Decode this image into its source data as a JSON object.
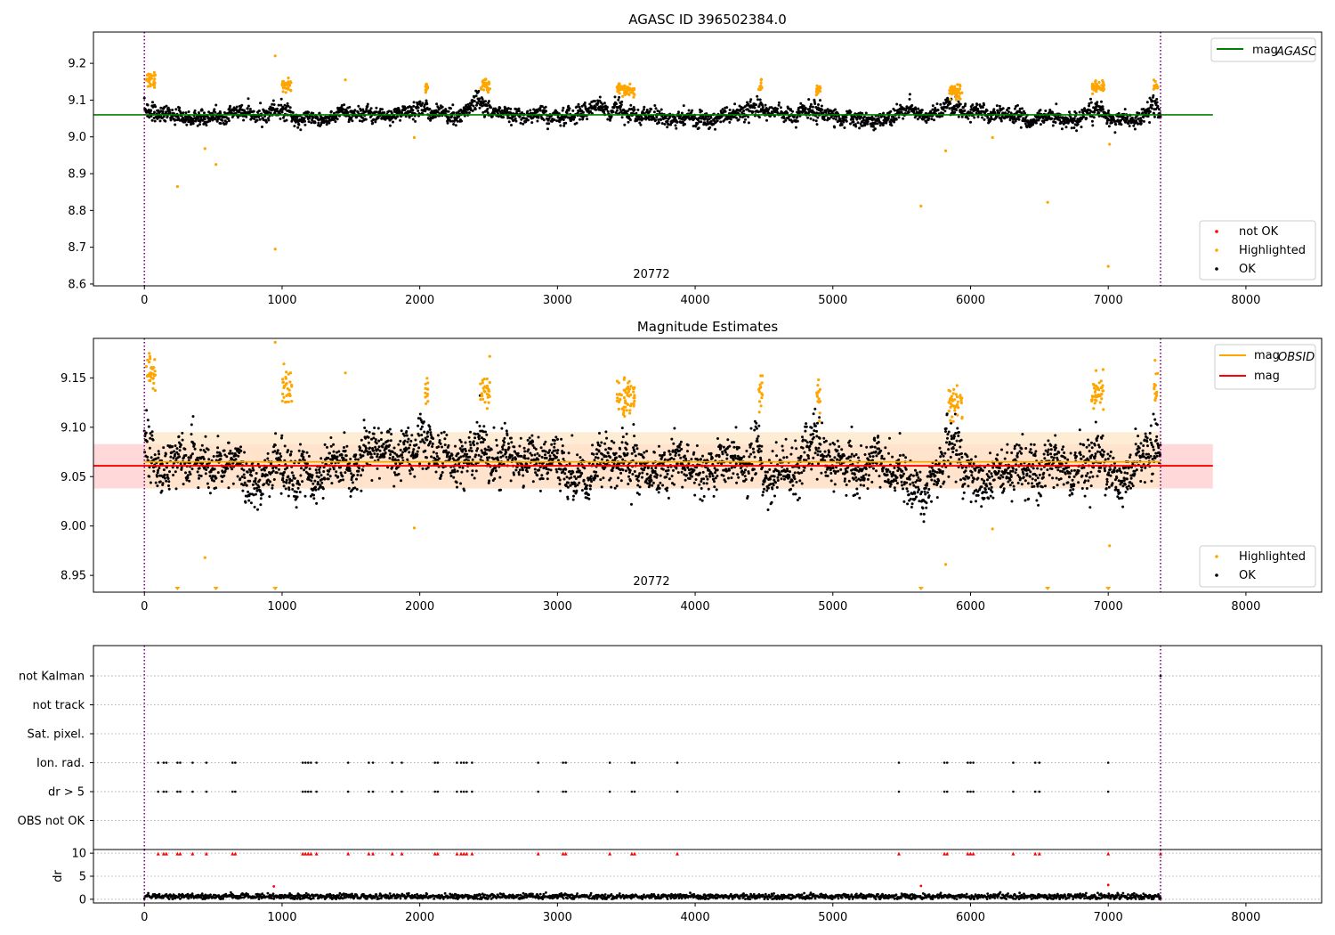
{
  "chart_data": [
    {
      "type": "scatter",
      "title": "AGASC ID 396502384.0",
      "annotation": "20772",
      "xlim": [
        -370,
        8550
      ],
      "ylim": [
        8.595,
        9.285
      ],
      "xticks": [
        0,
        1000,
        2000,
        3000,
        4000,
        5000,
        6000,
        7000,
        8000
      ],
      "yticks": [
        8.6,
        8.7,
        8.8,
        8.9,
        9.0,
        9.1,
        9.2
      ],
      "ytick_labels": [
        "8.6",
        "8.7",
        "8.8",
        "8.9",
        "9.0",
        "9.1",
        "9.2"
      ],
      "vlines": [
        0,
        7380
      ],
      "lines": [
        {
          "name": "mag_AGASC",
          "label_main": "mag",
          "label_sub": "AGASC",
          "y": 9.06,
          "x_range": [
            -370,
            7760
          ],
          "color": "#008000"
        }
      ],
      "legend_top": [
        {
          "label_main": "mag",
          "label_sub": "AGASC",
          "kind": "line",
          "color": "#008000"
        }
      ],
      "legend_bottom": [
        {
          "label": "not OK",
          "kind": "dot",
          "color": "#ff0000"
        },
        {
          "label": "Highlighted",
          "kind": "dot",
          "color": "#ffa500"
        },
        {
          "label": "OK",
          "kind": "dot",
          "color": "#000000"
        }
      ],
      "series": [
        {
          "name": "OK",
          "color": "#000000",
          "generated": "baseline",
          "center": 9.058,
          "spread": 0.018,
          "seed": 11
        },
        {
          "name": "Highlighted",
          "color": "#ffa500",
          "clusters": [
            [
              10,
              80,
              9.155
            ],
            [
              1000,
              1070,
              9.14
            ],
            [
              2040,
              2060,
              9.135
            ],
            [
              2440,
              2510,
              9.138
            ],
            [
              3430,
              3560,
              9.13
            ],
            [
              4460,
              4490,
              9.135
            ],
            [
              4880,
              4910,
              9.13
            ],
            [
              5840,
              5940,
              9.125
            ],
            [
              6880,
              6970,
              9.135
            ],
            [
              7330,
              7360,
              9.14
            ]
          ],
          "outliers": [
            [
              240,
              8.865
            ],
            [
              440,
              8.968
            ],
            [
              520,
              8.925
            ],
            [
              950,
              8.695
            ],
            [
              950,
              9.22
            ],
            [
              1460,
              9.155
            ],
            [
              1960,
              8.998
            ],
            [
              5640,
              8.812
            ],
            [
              5820,
              8.962
            ],
            [
              6160,
              8.998
            ],
            [
              6560,
              8.822
            ],
            [
              7000,
              8.648
            ],
            [
              7010,
              8.98
            ]
          ]
        }
      ]
    },
    {
      "type": "scatter",
      "title": "Magnitude Estimates",
      "annotation": "20772",
      "xlim": [
        -370,
        8550
      ],
      "ylim": [
        8.933,
        9.19
      ],
      "xticks": [
        0,
        1000,
        2000,
        3000,
        4000,
        5000,
        6000,
        7000,
        8000
      ],
      "yticks": [
        8.95,
        9.0,
        9.05,
        9.1,
        9.15
      ],
      "ytick_labels": [
        "8.95",
        "9.00",
        "9.05",
        "9.10",
        "9.15"
      ],
      "vlines": [
        0,
        7380
      ],
      "bands": [
        {
          "y": [
            9.038,
            9.083
          ],
          "x_range": [
            -370,
            7760
          ],
          "color": "#ffcccc"
        },
        {
          "y": [
            9.038,
            9.095
          ],
          "x_range": [
            0,
            7380
          ],
          "color": "#ffe6c7"
        }
      ],
      "lines": [
        {
          "name": "mag_OBSID",
          "y": 9.065,
          "x_range": [
            0,
            7380
          ],
          "color": "#ffa500"
        },
        {
          "name": "mag",
          "y": 9.061,
          "x_range": [
            -370,
            7760
          ],
          "color": "#ff0000"
        }
      ],
      "legend_top": [
        {
          "label_main": "mag",
          "label_sub": "OBSID",
          "kind": "line",
          "color": "#ffa500"
        },
        {
          "label_main": "mag",
          "label_sub": "",
          "kind": "line",
          "color": "#ff0000"
        }
      ],
      "legend_bottom": [
        {
          "label": "Highlighted",
          "kind": "dot",
          "color": "#ffa500"
        },
        {
          "label": "OK",
          "kind": "dot",
          "color": "#000000"
        }
      ],
      "series": [
        {
          "name": "OK",
          "color": "#000000",
          "generated": "baseline",
          "center": 9.058,
          "spread": 0.02,
          "seed": 29
        },
        {
          "name": "Highlighted",
          "color": "#ffa500",
          "clusters": [
            [
              10,
              80,
              9.155
            ],
            [
              1000,
              1070,
              9.14
            ],
            [
              2040,
              2060,
              9.135
            ],
            [
              2440,
              2510,
              9.138
            ],
            [
              3430,
              3560,
              9.13
            ],
            [
              4460,
              4490,
              9.135
            ],
            [
              4880,
              4910,
              9.13
            ],
            [
              5840,
              5940,
              9.125
            ],
            [
              6880,
              6970,
              9.135
            ],
            [
              7330,
              7360,
              9.14
            ]
          ],
          "outliers": [
            [
              440,
              8.968
            ],
            [
              1460,
              9.155
            ],
            [
              950,
              9.186
            ],
            [
              1960,
              8.998
            ],
            [
              5820,
              8.961
            ],
            [
              6160,
              8.997
            ],
            [
              7010,
              8.98
            ]
          ],
          "clipped_x": [
            240,
            520,
            950,
            5640,
            6560,
            7000
          ]
        }
      ]
    },
    {
      "type": "scatter",
      "title": "",
      "xlim": [
        -370,
        8550
      ],
      "categories": [
        "not Kalman",
        "not track",
        "Sat. pixel.",
        "Ion. rad.",
        "dr > 5",
        "OBS not OK"
      ],
      "vlines": [
        0,
        7380
      ],
      "flag_x": [
        100,
        140,
        160,
        240,
        260,
        350,
        450,
        640,
        660,
        1150,
        1170,
        1190,
        1210,
        1250,
        1480,
        1630,
        1660,
        1800,
        1870,
        2110,
        2130,
        2270,
        2300,
        2320,
        2340,
        2380,
        2860,
        3040,
        3060,
        3380,
        3540,
        3560,
        3870,
        5480,
        5810,
        5830,
        5980,
        6000,
        6020,
        6310,
        6470,
        6500,
        7000
      ],
      "flag_rows": [
        "Ion. rad.",
        "dr > 5"
      ],
      "not_kalman_x": [
        7380
      ]
    },
    {
      "type": "line",
      "title": "",
      "ylabel": "dr",
      "xlim": [
        -370,
        8550
      ],
      "ylim": [
        -0.8,
        10.8
      ],
      "yticks": [
        0,
        5,
        10
      ],
      "ytick_labels": [
        "0",
        "5",
        "10"
      ],
      "xticks": [
        0,
        1000,
        2000,
        3000,
        4000,
        5000,
        6000,
        7000,
        8000
      ],
      "vlines": [
        0,
        7380
      ],
      "series": [
        {
          "name": "dr",
          "color": "#000000",
          "generated": "dr",
          "center": 0.6,
          "spread": 0.3,
          "seed": 57
        },
        {
          "name": "dr flagged",
          "color": "#ff0000",
          "y": 9.9,
          "x_ref": "flag_x"
        },
        {
          "name": "dr spikes",
          "color": "#ff0000",
          "points": [
            [
              940,
              2.8
            ],
            [
              5640,
              2.9
            ],
            [
              7000,
              3.1
            ]
          ]
        }
      ]
    }
  ]
}
